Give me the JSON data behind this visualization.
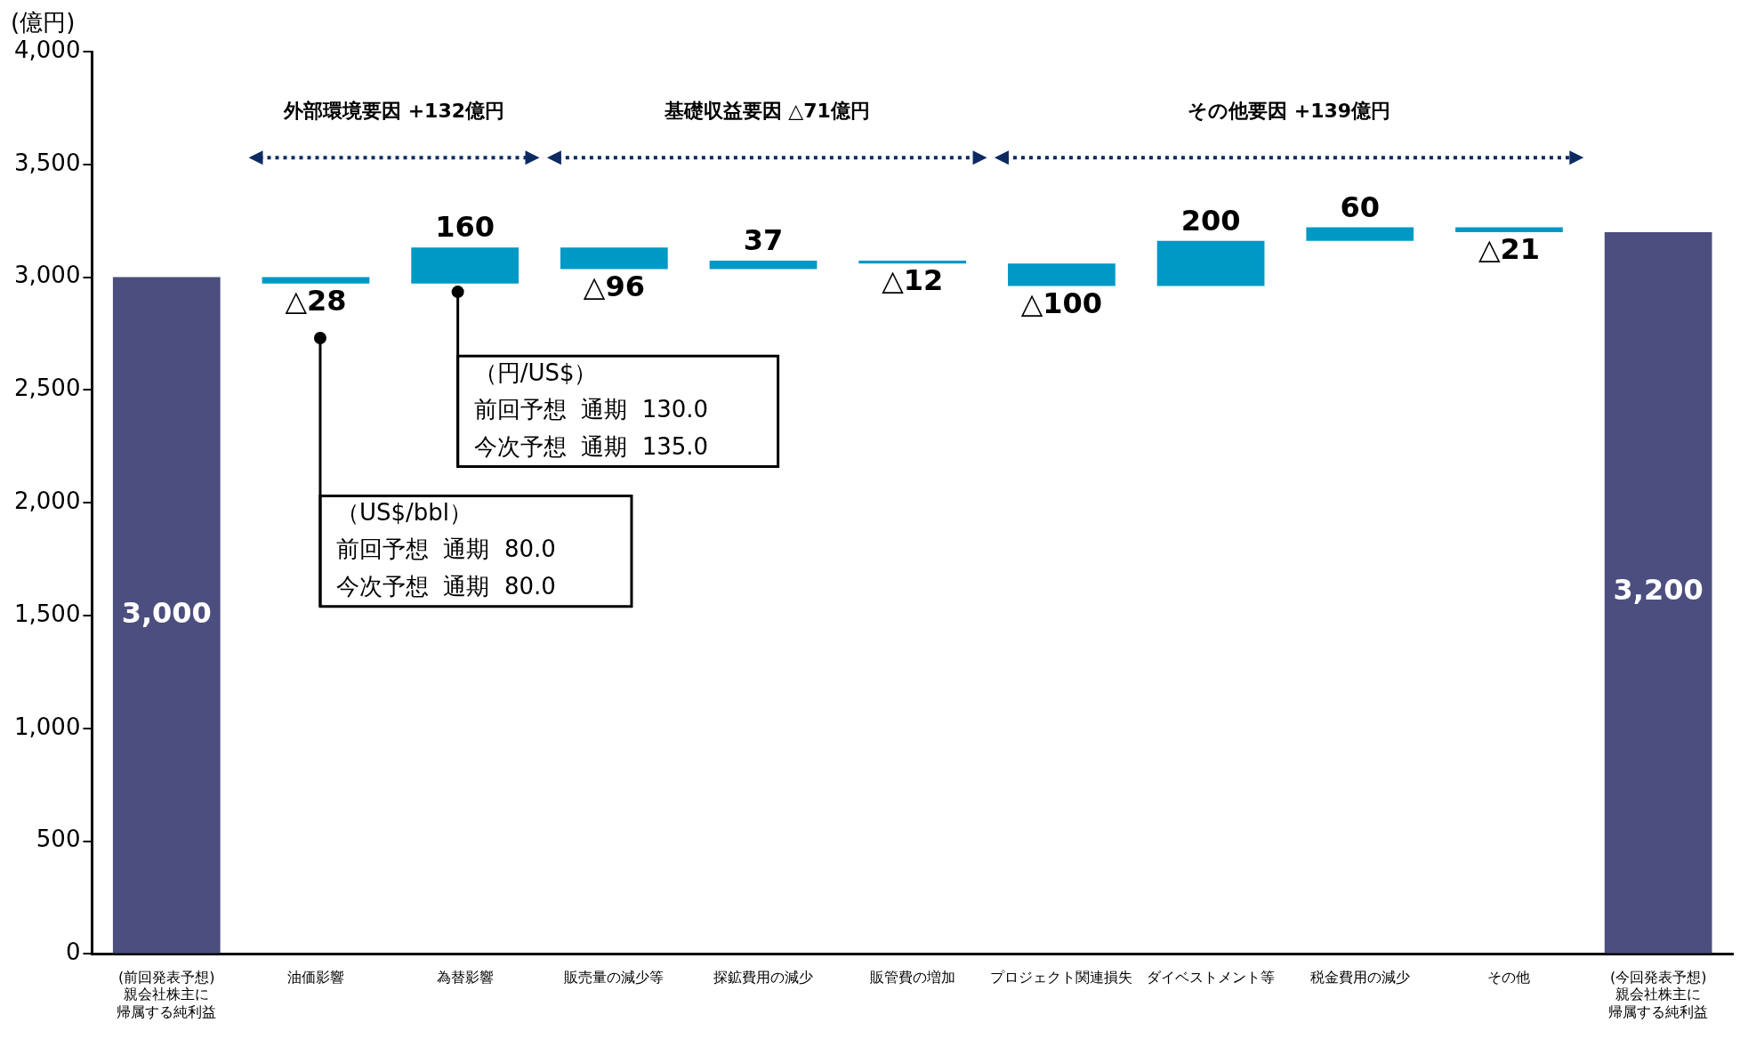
{
  "chart_data": {
    "type": "bar",
    "ylabel": "(億円)",
    "categories": [
      "(前回発表予想)親会社株主に帰属する純利益",
      "油価影響",
      "為替影響",
      "販売量の減少等",
      "探鉱費用の減少",
      "販管費の増加",
      "プロジェクト関連損失",
      "ダイベストメント等",
      "税金費用の減少",
      "その他",
      "(今回発表予想)親会社株主に帰属する純利益"
    ],
    "values": [
      3000,
      -28,
      160,
      -96,
      37,
      -12,
      -100,
      200,
      60,
      -21,
      3200
    ],
    "base": [
      0,
      3000,
      2972,
      3132,
      3036,
      3073,
      3061,
      2961,
      3161,
      3221,
      0
    ],
    "colors": [
      "#4b4e7e",
      "#0099c6",
      "#0099c6",
      "#0099c6",
      "#0099c6",
      "#0099c6",
      "#0099c6",
      "#0099c6",
      "#0099c6",
      "#0099c6",
      "#4b4e7e"
    ],
    "value_labels": [
      "3,000",
      "△28",
      "160",
      "△96",
      "37",
      "△12",
      "△100",
      "200",
      "60",
      "△21",
      "3,200"
    ],
    "ylim": [
      0,
      4000
    ],
    "yticks": [
      0,
      500,
      {
        "value": 1000,
        "label": "1,000"
      },
      {
        "value": 1500,
        "label": "1,500"
      },
      {
        "value": 2000,
        "label": "2,000"
      },
      {
        "value": 2500,
        "label": "2,500"
      },
      {
        "value": 3000,
        "label": "3,000"
      },
      {
        "value": 3500,
        "label": "3,500"
      },
      {
        "value": 4000,
        "label": "4,000"
      }
    ],
    "legend": false,
    "annotations": [
      "外部環境要因 +132億円",
      "基礎収益要因 △71億円",
      "その他要因 +139億円",
      "（US$/bbl）",
      "前回予想  通期  80.0",
      "今次予想  通期  80.0",
      "（円/US$）",
      "前回予想  通期  130.0",
      "今次予想  通期  135.0"
    ]
  }
}
